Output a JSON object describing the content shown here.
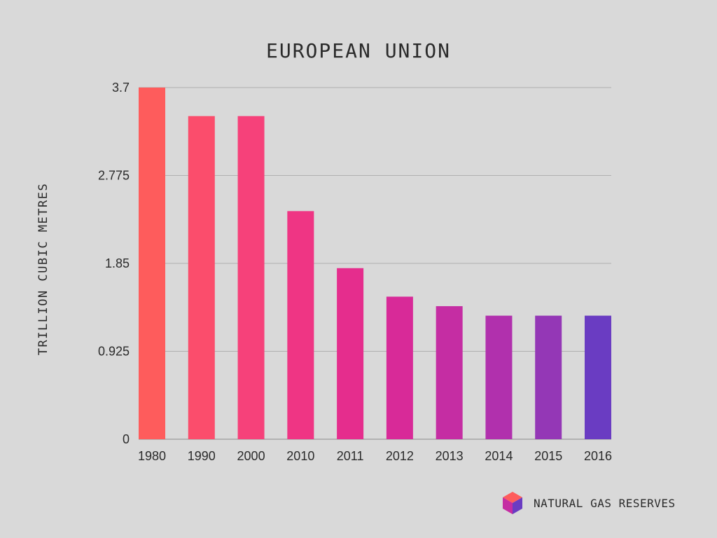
{
  "chart_data": {
    "type": "bar",
    "title": "EUROPEAN UNION",
    "ylabel": "TRILLION CUBIC METRES",
    "xlabel": "",
    "categories": [
      "1980",
      "1990",
      "2000",
      "2010",
      "2011",
      "2012",
      "2013",
      "2014",
      "2015",
      "2016"
    ],
    "series": [
      {
        "name": "NATURAL GAS RESERVES",
        "values": [
          3.7,
          3.4,
          3.4,
          2.4,
          1.8,
          1.5,
          1.4,
          1.3,
          1.3,
          1.3
        ]
      }
    ],
    "ylim": [
      0,
      3.7
    ],
    "yticks": [
      "0",
      "0.925",
      "1.85",
      "2.775",
      "3.7"
    ],
    "grid": true,
    "legend_position": "bottom-right",
    "colors": [
      "#fe5c5c",
      "#fb4d6c",
      "#f6417a",
      "#ef3584",
      "#e52d8d",
      "#d82a98",
      "#c52da3",
      "#b130ad",
      "#9437b6",
      "#6a3cc2"
    ]
  },
  "legend_icon": "cube-icon"
}
